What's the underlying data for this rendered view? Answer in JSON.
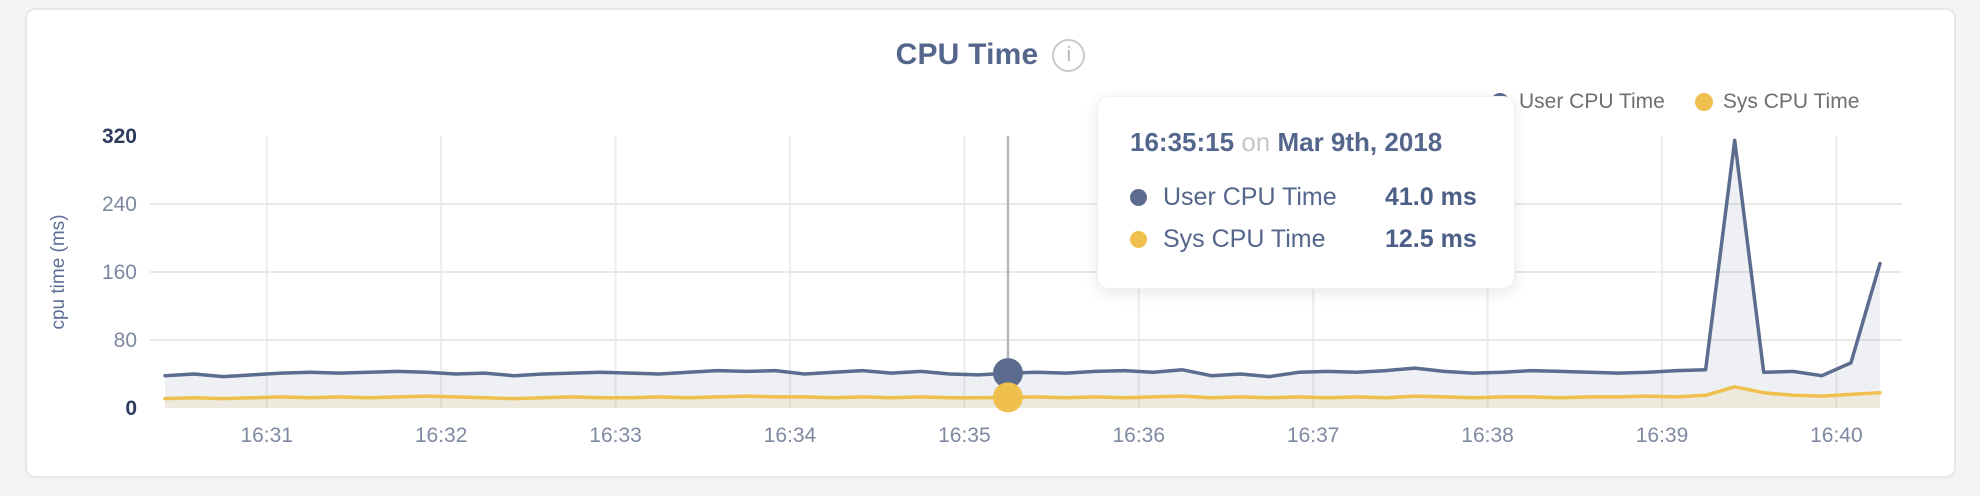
{
  "header": {
    "title": "CPU Time",
    "info_icon_glyph": "i"
  },
  "legend": {
    "items": [
      {
        "label": "User CPU Time",
        "color": "#5b6c8f"
      },
      {
        "label": "Sys CPU Time",
        "color": "#f0c04e"
      }
    ]
  },
  "tooltip": {
    "time": "16:35:15",
    "separator": "on",
    "date": "Mar 9th, 2018",
    "rows": [
      {
        "label": "User CPU Time",
        "value": "41.0 ms",
        "color": "#5b6c8f"
      },
      {
        "label": "Sys CPU Time",
        "value": "12.5 ms",
        "color": "#f0c04e"
      }
    ]
  },
  "chart_data": {
    "type": "area",
    "title": "CPU Time",
    "xlabel": "",
    "ylabel": "cpu time (ms)",
    "ylim": [
      0,
      320
    ],
    "yticks": [
      0,
      80,
      160,
      240,
      320
    ],
    "xticks": [
      "16:31",
      "16:32",
      "16:33",
      "16:34",
      "16:35",
      "16:36",
      "16:37",
      "16:38",
      "16:39",
      "16:40"
    ],
    "x_start": "16:30:25",
    "x_step_seconds": 10,
    "grid": true,
    "legend_position": "top-right",
    "highlight": {
      "time": "16:35:15",
      "index": 29,
      "values": {
        "User CPU Time": 41.0,
        "Sys CPU Time": 12.5
      }
    },
    "series": [
      {
        "name": "User CPU Time",
        "color": "#5b6c8f",
        "fill": "rgba(92,109,144,0.10)",
        "values": [
          38,
          40,
          37,
          39,
          41,
          42,
          41,
          42,
          43,
          42,
          40,
          41,
          38,
          40,
          41,
          42,
          41,
          40,
          42,
          44,
          43,
          44,
          40,
          42,
          44,
          41,
          43,
          40,
          39,
          41,
          42,
          41,
          43,
          44,
          42,
          45,
          38,
          40,
          37,
          42,
          43,
          42,
          44,
          47,
          43,
          41,
          42,
          44,
          43,
          42,
          41,
          42,
          44,
          45,
          315,
          42,
          43,
          38,
          53,
          170
        ]
      },
      {
        "name": "Sys CPU Time",
        "color": "#f0c04e",
        "fill": "rgba(240,193,84,0.14)",
        "values": [
          11,
          12,
          11,
          12,
          13,
          12,
          13,
          12,
          13,
          14,
          13,
          12,
          11,
          12,
          13,
          12,
          12,
          13,
          12,
          13,
          14,
          13,
          13,
          12,
          13,
          12,
          13,
          12,
          12,
          12.5,
          13,
          12,
          13,
          12,
          13,
          14,
          12,
          13,
          12,
          13,
          12,
          13,
          12,
          14,
          13,
          12,
          13,
          13,
          12,
          13,
          13,
          14,
          13,
          15,
          25,
          18,
          15,
          14,
          16,
          18
        ]
      }
    ]
  }
}
